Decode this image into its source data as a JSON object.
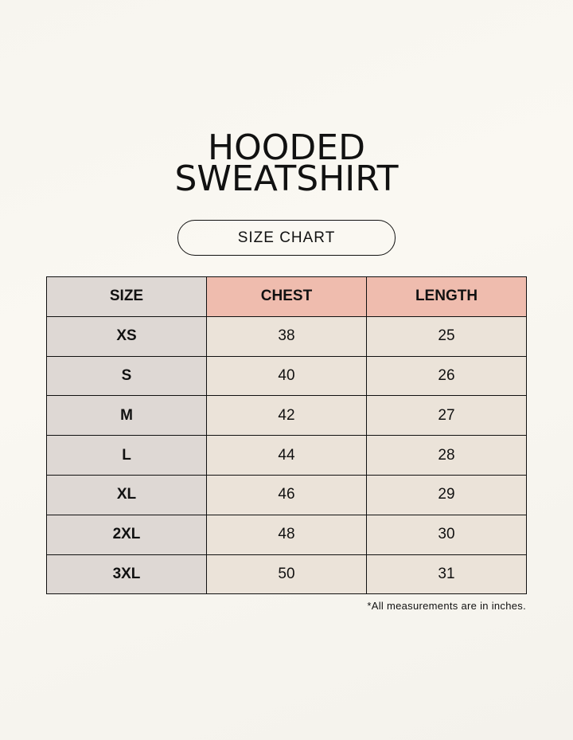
{
  "title_line1": "HOODED",
  "title_line2": "SWEATSHIRT",
  "subtitle": "SIZE CHART",
  "table": {
    "headers": [
      "SIZE",
      "CHEST",
      "LENGTH"
    ],
    "rows": [
      [
        "XS",
        "38",
        "25"
      ],
      [
        "S",
        "40",
        "26"
      ],
      [
        "M",
        "42",
        "27"
      ],
      [
        "L",
        "44",
        "28"
      ],
      [
        "XL",
        "46",
        "29"
      ],
      [
        "2XL",
        "48",
        "30"
      ],
      [
        "3XL",
        "50",
        "31"
      ]
    ]
  },
  "note": "*All measurements are in inches.",
  "colors": {
    "background": "#f8f6f0",
    "header": "#efbcae",
    "size_column": "#ded8d4",
    "cell": "#ebe3d9"
  }
}
